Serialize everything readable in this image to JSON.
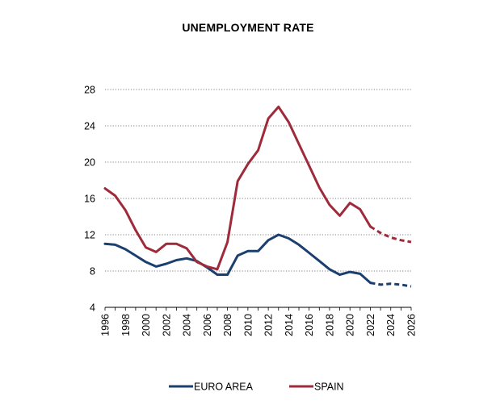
{
  "chart_data": {
    "type": "line",
    "title": "UNEMPLOYMENT RATE",
    "xlabel": "",
    "ylabel": "",
    "ylim": [
      4,
      28
    ],
    "yticks": [
      4,
      8,
      12,
      16,
      20,
      24,
      28
    ],
    "xlim": [
      1996,
      2026
    ],
    "xticks": [
      1996,
      1998,
      2000,
      2002,
      2004,
      2006,
      2008,
      2010,
      2012,
      2014,
      2016,
      2018,
      2020,
      2022,
      2024,
      2026
    ],
    "grid": "horizontal dotted",
    "legend_position": "bottom",
    "series": [
      {
        "name": "EURO AREA",
        "color": "#1b3f6e",
        "x": [
          1996,
          1997,
          1998,
          1999,
          2000,
          2001,
          2002,
          2003,
          2004,
          2005,
          2006,
          2007,
          2008,
          2009,
          2010,
          2011,
          2012,
          2013,
          2014,
          2015,
          2016,
          2017,
          2018,
          2019,
          2020,
          2021,
          2022
        ],
        "values": [
          11.0,
          10.9,
          10.4,
          9.7,
          9.0,
          8.5,
          8.8,
          9.2,
          9.4,
          9.1,
          8.4,
          7.6,
          7.6,
          9.7,
          10.2,
          10.2,
          11.4,
          12.0,
          11.6,
          10.9,
          10.0,
          9.1,
          8.2,
          7.6,
          7.9,
          7.7,
          6.7
        ],
        "projection": {
          "x": [
            2022,
            2023,
            2024,
            2025,
            2026
          ],
          "values": [
            6.7,
            6.5,
            6.6,
            6.5,
            6.3
          ]
        }
      },
      {
        "name": "SPAIN",
        "color": "#9e2a3a",
        "x": [
          1996,
          1997,
          1998,
          1999,
          2000,
          2001,
          2002,
          2003,
          2004,
          2005,
          2006,
          2007,
          2008,
          2009,
          2010,
          2011,
          2012,
          2013,
          2014,
          2015,
          2016,
          2017,
          2018,
          2019,
          2020,
          2021,
          2022
        ],
        "values": [
          17.1,
          16.3,
          14.7,
          12.5,
          10.6,
          10.1,
          11.0,
          11.0,
          10.5,
          9.0,
          8.5,
          8.2,
          11.2,
          17.9,
          19.8,
          21.3,
          24.8,
          26.1,
          24.4,
          22.0,
          19.6,
          17.2,
          15.3,
          14.1,
          15.5,
          14.8,
          12.9
        ],
        "projection": {
          "x": [
            2022,
            2023,
            2024,
            2025,
            2026
          ],
          "values": [
            12.9,
            12.2,
            11.7,
            11.4,
            11.2
          ]
        }
      }
    ]
  }
}
